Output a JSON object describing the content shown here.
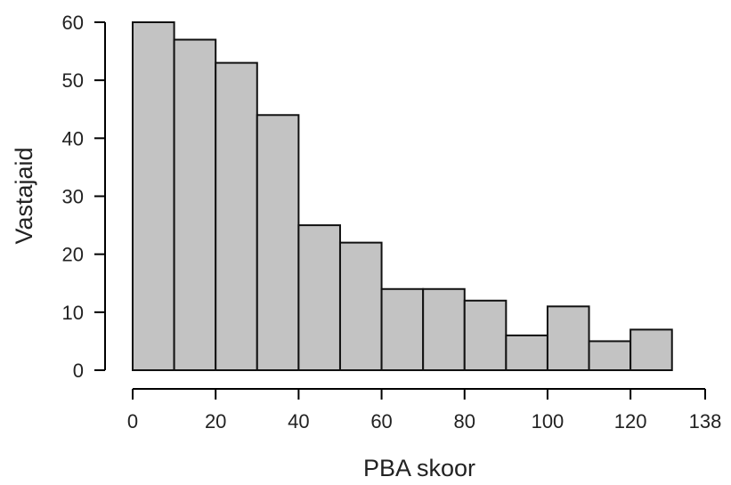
{
  "chart_data": {
    "type": "bar",
    "title": "",
    "xlabel": "PBA skoor",
    "ylabel": "Vastajaid",
    "bins": [
      {
        "x0": 0,
        "x1": 10,
        "count": 60
      },
      {
        "x0": 10,
        "x1": 20,
        "count": 57
      },
      {
        "x0": 20,
        "x1": 30,
        "count": 53
      },
      {
        "x0": 30,
        "x1": 40,
        "count": 44
      },
      {
        "x0": 40,
        "x1": 50,
        "count": 25
      },
      {
        "x0": 50,
        "x1": 60,
        "count": 22
      },
      {
        "x0": 60,
        "x1": 70,
        "count": 14
      },
      {
        "x0": 70,
        "x1": 80,
        "count": 14
      },
      {
        "x0": 80,
        "x1": 90,
        "count": 12
      },
      {
        "x0": 90,
        "x1": 100,
        "count": 6
      },
      {
        "x0": 100,
        "x1": 110,
        "count": 11
      },
      {
        "x0": 110,
        "x1": 120,
        "count": 5
      },
      {
        "x0": 120,
        "x1": 130,
        "count": 7
      }
    ],
    "xlim": [
      0,
      138
    ],
    "ylim": [
      0,
      60
    ],
    "xticks": [
      "0",
      "20",
      "40",
      "60",
      "80",
      "100",
      "120",
      "138"
    ],
    "yticks": [
      "0",
      "10",
      "20",
      "30",
      "40",
      "50",
      "60"
    ],
    "bar_color": "#c3c3c3",
    "edge_color": "#111111",
    "grid": false,
    "legend": "none"
  }
}
